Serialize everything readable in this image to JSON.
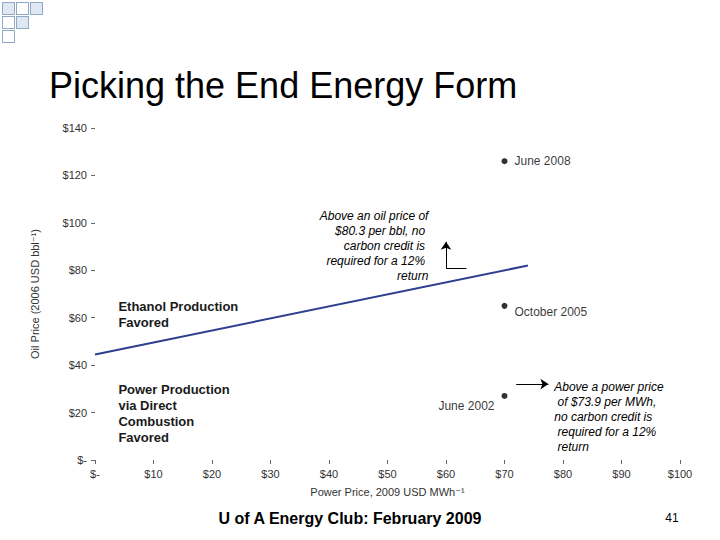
{
  "chart_data": {
    "type": "line",
    "title": "Picking the End Energy Form",
    "x_label": "Power Price, 2009 USD MWh⁻¹",
    "y_label": "Oil Price (2006 USD bbl⁻¹)",
    "xlim": [
      0,
      100
    ],
    "ylim": [
      0,
      140
    ],
    "xticks": [
      {
        "value": 0,
        "label": "$-"
      },
      {
        "value": 10,
        "label": "$10"
      },
      {
        "value": 20,
        "label": "$20"
      },
      {
        "value": 30,
        "label": "$30"
      },
      {
        "value": 40,
        "label": "$40"
      },
      {
        "value": 50,
        "label": "$50"
      },
      {
        "value": 60,
        "label": "$60"
      },
      {
        "value": 70,
        "label": "$70"
      },
      {
        "value": 80,
        "label": "$80"
      },
      {
        "value": 90,
        "label": "$90"
      },
      {
        "value": 100,
        "label": "$100"
      }
    ],
    "yticks": [
      {
        "value": 0,
        "label": "$-"
      },
      {
        "value": 20,
        "label": "$20"
      },
      {
        "value": 40,
        "label": "$40"
      },
      {
        "value": 60,
        "label": "$60"
      },
      {
        "value": 80,
        "label": "$80"
      },
      {
        "value": 100,
        "label": "$100"
      },
      {
        "value": 120,
        "label": "$120"
      },
      {
        "value": 140,
        "label": "$140"
      }
    ],
    "grid": false,
    "series": [
      {
        "type": "line",
        "color": "#2e3f8f",
        "line_style": "solid",
        "x": [
          0,
          74
        ],
        "values": [
          44.5,
          82
        ]
      },
      {
        "type": "scatter",
        "color": "#000000",
        "marker": "circle",
        "x": [
          70,
          70,
          70
        ],
        "values": [
          126,
          65,
          27
        ],
        "labels": [
          "June 2008",
          "October 2005",
          "June 2002"
        ]
      }
    ],
    "region_labels": [
      "Ethanol Production Favored",
      "Power Production via Direct Combustion Favored"
    ],
    "annotations": [
      "Above an oil price of $80.3 per bbl, no carbon credit is required for a 12% return",
      "Above a power price of $73.9 per MWh, no carbon credit is required for a 12% return"
    ],
    "footer": "U of A Energy Club: February 2009",
    "page_number": "41"
  }
}
